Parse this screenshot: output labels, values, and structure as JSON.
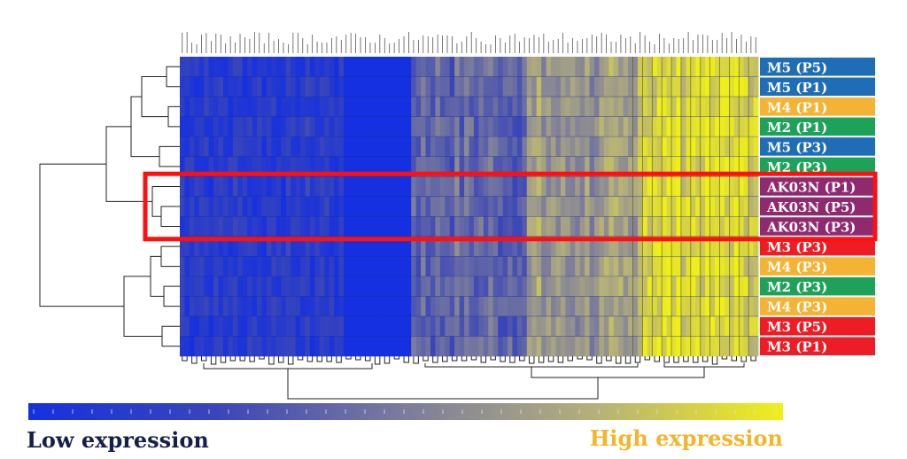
{
  "chart_data": {
    "type": "heatmap",
    "rows": [
      {
        "label": "M5 (P5)",
        "group_color": "#1f6db7"
      },
      {
        "label": "M5 (P1)",
        "group_color": "#1f6db7"
      },
      {
        "label": "M4 (P1)",
        "group_color": "#f4b334"
      },
      {
        "label": "M2 (P1)",
        "group_color": "#1ea25a"
      },
      {
        "label": "M5 (P3)",
        "group_color": "#1f6db7"
      },
      {
        "label": "M2 (P3)",
        "group_color": "#1ea25a"
      },
      {
        "label": "AK03N (P1)",
        "group_color": "#8f2a6f"
      },
      {
        "label": "AK03N (P5)",
        "group_color": "#8f2a6f"
      },
      {
        "label": "AK03N (P3)",
        "group_color": "#8f2a6f"
      },
      {
        "label": "M3 (P3)",
        "group_color": "#ee1c24"
      },
      {
        "label": "M4 (P3)",
        "group_color": "#f4b334"
      },
      {
        "label": "M2 (P3)",
        "group_color": "#1ea25a"
      },
      {
        "label": "M4 (P3)",
        "group_color": "#f4b334"
      },
      {
        "label": "M3 (P5)",
        "group_color": "#ee1c24"
      },
      {
        "label": "M3 (P1)",
        "group_color": "#ee1c24"
      }
    ],
    "column_count": 120,
    "colorscale": [
      "#1530e0",
      "#3a46b8",
      "#7c7c9c",
      "#b5b07a",
      "#f0ef1a"
    ],
    "highlight_rows": [
      "AK03N (P1)",
      "AK03N (P5)",
      "AK03N (P3)"
    ],
    "highlight_color": "#ff1010",
    "legend": {
      "low_label": "Low expression",
      "high_label": "High expression"
    }
  }
}
